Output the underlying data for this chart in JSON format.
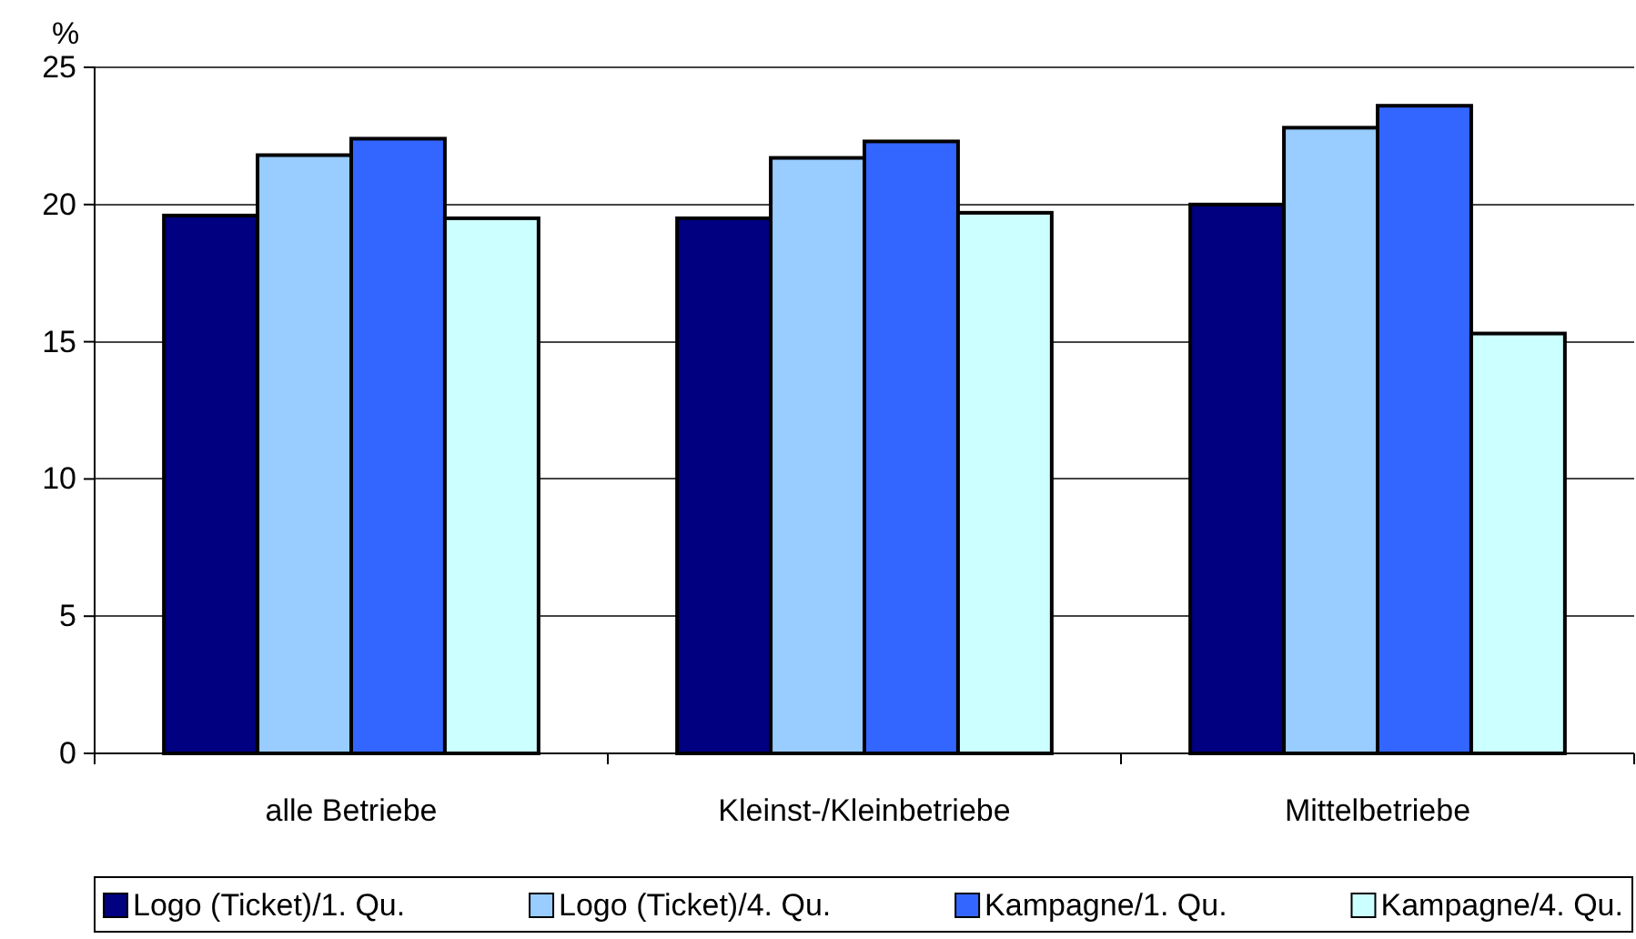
{
  "chart_data": {
    "type": "bar",
    "ylabel": "%",
    "categories": [
      "alle Betriebe",
      "Kleinst-/Kleinbetriebe",
      "Mittelbetriebe"
    ],
    "series": [
      {
        "name": "Logo (Ticket)/1. Qu.",
        "color": "#000080",
        "values": [
          19.6,
          19.5,
          20.0
        ]
      },
      {
        "name": "Logo (Ticket)/4. Qu.",
        "color": "#99ccff",
        "values": [
          21.8,
          21.7,
          22.8
        ]
      },
      {
        "name": "Kampagne/1. Qu.",
        "color": "#3366ff",
        "values": [
          22.4,
          22.3,
          23.6
        ]
      },
      {
        "name": "Kampagne/4. Qu.",
        "color": "#ccffff",
        "values": [
          19.5,
          19.7,
          15.3
        ]
      }
    ],
    "ylim": [
      0,
      25
    ],
    "yticks": [
      0,
      5,
      10,
      15,
      20,
      25
    ],
    "grid": "y",
    "legend": "bottom"
  }
}
